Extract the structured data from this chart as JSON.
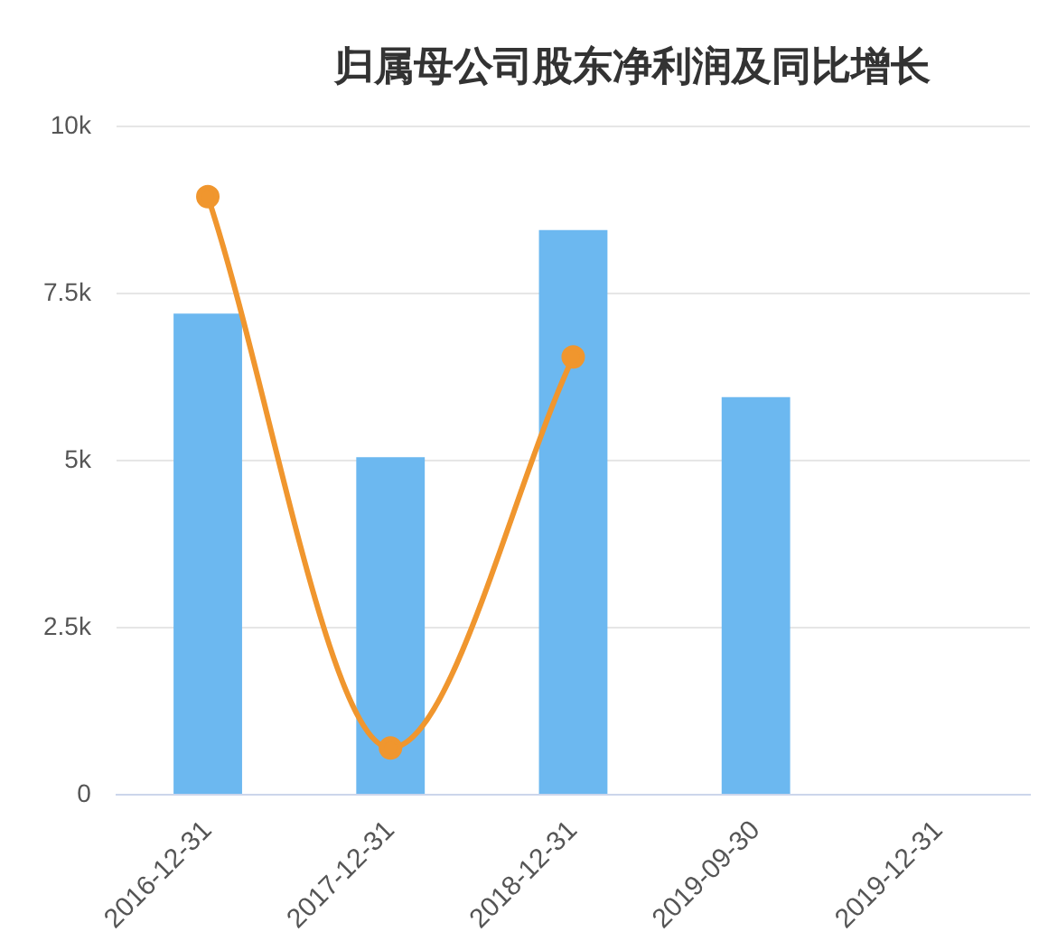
{
  "chart_data": {
    "type": "bar",
    "title": "归属母公司股东净利润及同比增长",
    "categories": [
      "2016-12-31",
      "2017-12-31",
      "2018-12-31",
      "2019-09-30",
      "2019-12-31"
    ],
    "series": [
      {
        "color": "#6cb8f0",
        "values": [
          7200,
          5050,
          8450,
          5950,
          null
        ]
      },
      {
        "type": "line",
        "color": "#f0962e",
        "values": [
          8950,
          700,
          6550,
          null,
          null
        ]
      }
    ],
    "ylim": [
      0,
      10000
    ],
    "yticks": [
      0,
      {
        "value": 2500,
        "label": "2.5k"
      },
      {
        "value": 5000,
        "label": "5k"
      },
      {
        "value": 7500,
        "label": "7.5k"
      },
      {
        "value": 10000,
        "label": "10k"
      }
    ],
    "grid": "y",
    "marker": "circle",
    "legend": false
  }
}
